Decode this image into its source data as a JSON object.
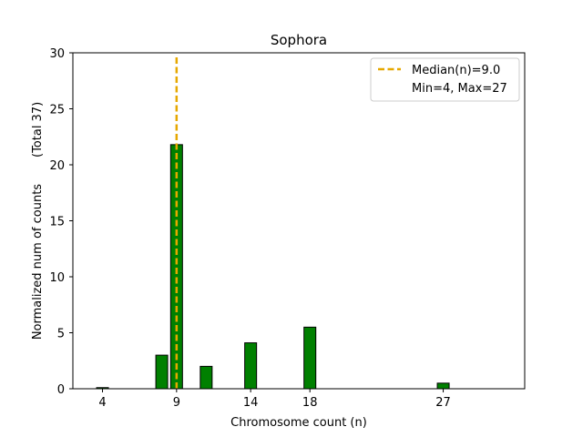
{
  "chart_data": {
    "type": "bar",
    "title": "Sophora",
    "xlabel": "Chromosome count (n)",
    "ylabel": "Normalized num of counts       (Total 37)",
    "xlim": [
      2,
      32.5
    ],
    "ylim": [
      0,
      30
    ],
    "x_ticks": [
      4,
      9,
      14,
      18,
      27
    ],
    "y_ticks": [
      0,
      5,
      10,
      15,
      20,
      25,
      30
    ],
    "bar_width": 0.8,
    "bars": [
      {
        "x": 4,
        "value": 0.1
      },
      {
        "x": 8,
        "value": 3.0
      },
      {
        "x": 9,
        "value": 21.8
      },
      {
        "x": 11,
        "value": 2.0
      },
      {
        "x": 14,
        "value": 4.1
      },
      {
        "x": 18,
        "value": 5.5
      },
      {
        "x": 27,
        "value": 0.5
      }
    ],
    "bar_color": "#008000",
    "bar_edge_color": "#000000",
    "median_line": {
      "x": 9.0,
      "color": "#e6a800",
      "style": "dashed"
    },
    "legend": {
      "position": "top-right",
      "entries": [
        {
          "label": "Median(n)=9.0",
          "marker": "dashed-line",
          "color": "#e6a800"
        },
        {
          "label": "Min=4, Max=27",
          "marker": "none"
        }
      ]
    },
    "grid": false
  }
}
